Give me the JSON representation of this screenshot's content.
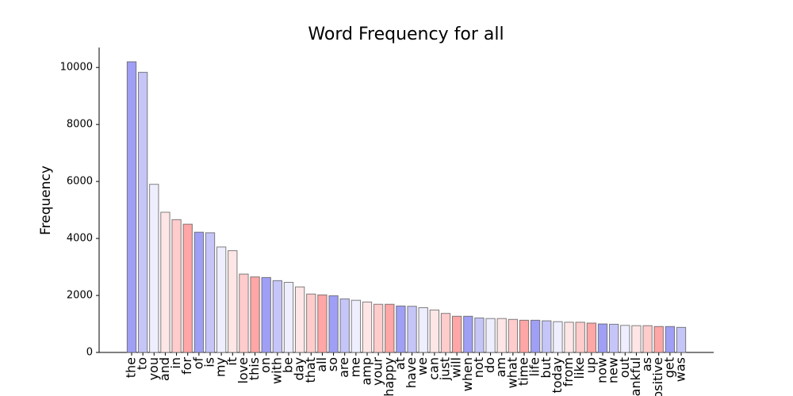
{
  "chart_data": {
    "type": "bar",
    "title": "Word Frequency for all",
    "y_label": "Frequency",
    "categories": [
      "the",
      "to",
      "you",
      "and",
      "in",
      "for",
      "of",
      "is",
      "my",
      "it",
      "love",
      "this",
      "on",
      "with",
      "be",
      "day",
      "that",
      "all",
      "so",
      "are",
      "me",
      "amp",
      "your",
      "happy",
      "at",
      "have",
      "we",
      "can",
      "just",
      "will",
      "when",
      "not",
      "do",
      "am",
      "what",
      "time",
      "life",
      "but",
      "today",
      "from",
      "like",
      "up",
      "now",
      "new",
      "out",
      "thankful",
      "as",
      "positive",
      "get",
      "was"
    ],
    "values": [
      10200,
      9830,
      5900,
      4920,
      4660,
      4500,
      4220,
      4200,
      3700,
      3570,
      2750,
      2650,
      2630,
      2520,
      2460,
      2300,
      2050,
      2020,
      1990,
      1880,
      1830,
      1770,
      1690,
      1690,
      1630,
      1620,
      1570,
      1490,
      1370,
      1270,
      1270,
      1210,
      1190,
      1190,
      1160,
      1130,
      1130,
      1110,
      1080,
      1060,
      1060,
      1030,
      1000,
      990,
      950,
      940,
      940,
      910,
      910,
      880
    ],
    "colors": [
      "#9f9ff5",
      "#c5c5f8",
      "#eeeeff",
      "#ffe6e6",
      "#ffcccc",
      "#ffa6a6",
      "#9f9ff5",
      "#c5c5f8",
      "#eeeeff",
      "#ffe6e6",
      "#ffcccc",
      "#ffa6a6",
      "#9f9ff5",
      "#c5c5f8",
      "#eeeeff",
      "#ffe6e6",
      "#ffcccc",
      "#ffa6a6",
      "#9f9ff5",
      "#c5c5f8",
      "#eeeeff",
      "#ffe6e6",
      "#ffcccc",
      "#ffa6a6",
      "#9f9ff5",
      "#c5c5f8",
      "#eeeeff",
      "#ffe6e6",
      "#ffcccc",
      "#ffa6a6",
      "#9f9ff5",
      "#c5c5f8",
      "#eeeeff",
      "#ffe6e6",
      "#ffcccc",
      "#ffa6a6",
      "#9f9ff5",
      "#c5c5f8",
      "#eeeeff",
      "#ffe6e6",
      "#ffcccc",
      "#ffa6a6",
      "#9f9ff5",
      "#c5c5f8",
      "#eeeeff",
      "#ffe6e6",
      "#ffcccc",
      "#ffa6a6",
      "#9f9ff5",
      "#c5c5f8"
    ],
    "ylim": [
      0,
      10700
    ],
    "yticks": [
      0,
      2000,
      4000,
      6000,
      8000,
      10000
    ],
    "grid": false
  }
}
